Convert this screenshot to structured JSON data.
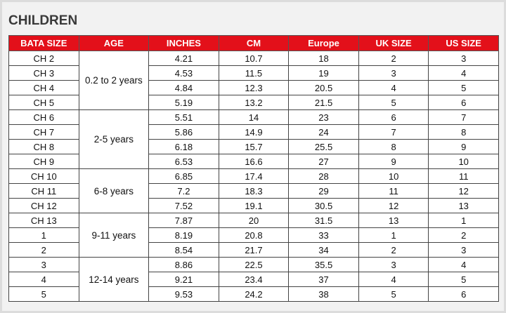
{
  "header": {
    "title": "CHILDREN"
  },
  "table": {
    "headers": [
      "BATA SIZE",
      "AGE",
      "INCHES",
      "CM",
      "Europe",
      "UK SIZE",
      "US SIZE"
    ],
    "groups": [
      {
        "age": "0.2 to 2 years",
        "rows": [
          [
            "CH 2",
            "4.21",
            "10.7",
            "18",
            "2",
            "3"
          ],
          [
            "CH 3",
            "4.53",
            "11.5",
            "19",
            "3",
            "4"
          ],
          [
            "CH 4",
            "4.84",
            "12.3",
            "20.5",
            "4",
            "5"
          ],
          [
            "CH 5",
            "5.19",
            "13.2",
            "21.5",
            "5",
            "6"
          ]
        ]
      },
      {
        "age": "2-5 years",
        "rows": [
          [
            "CH 6",
            "5.51",
            "14",
            "23",
            "6",
            "7"
          ],
          [
            "CH 7",
            "5.86",
            "14.9",
            "24",
            "7",
            "8"
          ],
          [
            "CH 8",
            "6.18",
            "15.7",
            "25.5",
            "8",
            "9"
          ],
          [
            "CH 9",
            "6.53",
            "16.6",
            "27",
            "9",
            "10"
          ]
        ]
      },
      {
        "age": "6-8 years",
        "rows": [
          [
            "CH 10",
            "6.85",
            "17.4",
            "28",
            "10",
            "11"
          ],
          [
            "CH 11",
            "7.2",
            "18.3",
            "29",
            "11",
            "12"
          ],
          [
            "CH 12",
            "7.52",
            "19.1",
            "30.5",
            "12",
            "13"
          ]
        ]
      },
      {
        "age": "9-11 years",
        "rows": [
          [
            "CH 13",
            "7.87",
            "20",
            "31.5",
            "13",
            "1"
          ],
          [
            "1",
            "8.19",
            "20.8",
            "33",
            "1",
            "2"
          ],
          [
            "2",
            "8.54",
            "21.7",
            "34",
            "2",
            "3"
          ]
        ]
      },
      {
        "age": "12-14 years",
        "rows": [
          [
            "3",
            "8.86",
            "22.5",
            "35.5",
            "3",
            "4"
          ],
          [
            "4",
            "9.21",
            "23.4",
            "37",
            "4",
            "5"
          ],
          [
            "5",
            "9.53",
            "24.2",
            "38",
            "5",
            "6"
          ]
        ]
      }
    ]
  }
}
